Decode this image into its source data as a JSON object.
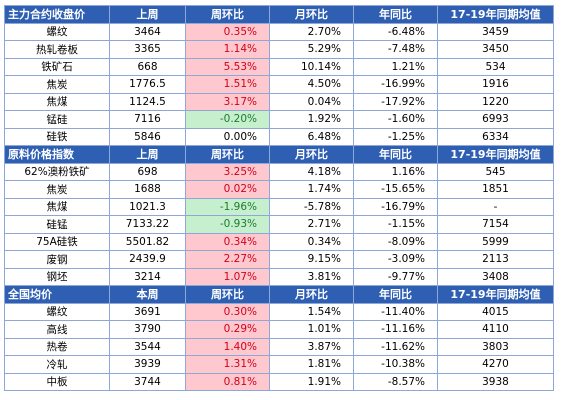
{
  "colors": {
    "header_bg": "#2f5fb3",
    "up_bg": "#ffc7ce",
    "up_text": "#d0021b",
    "down_bg": "#c6efce",
    "down_text": "#1e7b30"
  },
  "sections": [
    {
      "header": [
        "主力合约收盘价",
        "上周",
        "周环比",
        "月环比",
        "年同比",
        "17-19年同期均值"
      ],
      "rows": [
        {
          "name": "螺纹",
          "value": "3464",
          "wow": "0.35%",
          "trend": "up",
          "mom": "2.70%",
          "yoy": "-6.48%",
          "avg": "3459"
        },
        {
          "name": "热轧卷板",
          "value": "3365",
          "wow": "1.14%",
          "trend": "up",
          "mom": "5.29%",
          "yoy": "-7.48%",
          "avg": "3450"
        },
        {
          "name": "铁矿石",
          "value": "668",
          "wow": "5.53%",
          "trend": "up",
          "mom": "10.14%",
          "yoy": "1.21%",
          "avg": "534"
        },
        {
          "name": "焦炭",
          "value": "1776.5",
          "wow": "1.51%",
          "trend": "up",
          "mom": "4.50%",
          "yoy": "-16.99%",
          "avg": "1916"
        },
        {
          "name": "焦煤",
          "value": "1124.5",
          "wow": "3.17%",
          "trend": "up",
          "mom": "0.04%",
          "yoy": "-17.92%",
          "avg": "1220"
        },
        {
          "name": "锰硅",
          "value": "7116",
          "wow": "-0.20%",
          "trend": "down",
          "mom": "1.92%",
          "yoy": "-1.60%",
          "avg": "6993"
        },
        {
          "name": "硅铁",
          "value": "5846",
          "wow": "0.00%",
          "trend": "flat",
          "mom": "6.48%",
          "yoy": "-1.25%",
          "avg": "6334"
        }
      ]
    },
    {
      "header": [
        "原料价格指数",
        "上周",
        "周环比",
        "月环比",
        "年同比",
        "17-19年同期均值"
      ],
      "rows": [
        {
          "name": "62%澳粉铁矿",
          "value": "698",
          "wow": "3.25%",
          "trend": "up",
          "mom": "4.18%",
          "yoy": "1.16%",
          "avg": "545"
        },
        {
          "name": "焦炭",
          "value": "1688",
          "wow": "0.02%",
          "trend": "up",
          "mom": "1.74%",
          "yoy": "-15.65%",
          "avg": "1851"
        },
        {
          "name": "焦煤",
          "value": "1021.3",
          "wow": "-1.96%",
          "trend": "down",
          "mom": "-5.78%",
          "yoy": "-16.79%",
          "avg": "-"
        },
        {
          "name": "硅锰",
          "value": "7133.22",
          "wow": "-0.93%",
          "trend": "down",
          "mom": "2.71%",
          "yoy": "-1.15%",
          "avg": "7154"
        },
        {
          "name": "75A硅铁",
          "value": "5501.82",
          "wow": "0.34%",
          "trend": "up",
          "mom": "0.34%",
          "yoy": "-8.09%",
          "avg": "5999"
        },
        {
          "name": "废钢",
          "value": "2439.9",
          "wow": "2.27%",
          "trend": "up",
          "mom": "9.15%",
          "yoy": "-3.09%",
          "avg": "2113"
        },
        {
          "name": "钢坯",
          "value": "3214",
          "wow": "1.07%",
          "trend": "up",
          "mom": "3.81%",
          "yoy": "-9.77%",
          "avg": "3408"
        }
      ]
    },
    {
      "header": [
        "全国均价",
        "本周",
        "周环比",
        "月环比",
        "年同比",
        "17-19年同期均值"
      ],
      "rows": [
        {
          "name": "螺纹",
          "value": "3691",
          "wow": "0.30%",
          "trend": "up",
          "mom": "1.54%",
          "yoy": "-11.40%",
          "avg": "4015"
        },
        {
          "name": "高线",
          "value": "3790",
          "wow": "0.29%",
          "trend": "up",
          "mom": "1.01%",
          "yoy": "-11.16%",
          "avg": "4110"
        },
        {
          "name": "热卷",
          "value": "3544",
          "wow": "1.40%",
          "trend": "up",
          "mom": "3.87%",
          "yoy": "-11.62%",
          "avg": "3803"
        },
        {
          "name": "冷轧",
          "value": "3939",
          "wow": "1.31%",
          "trend": "up",
          "mom": "1.81%",
          "yoy": "-10.38%",
          "avg": "4270"
        },
        {
          "name": "中板",
          "value": "3744",
          "wow": "0.81%",
          "trend": "up",
          "mom": "1.91%",
          "yoy": "-8.57%",
          "avg": "3938"
        }
      ]
    }
  ]
}
